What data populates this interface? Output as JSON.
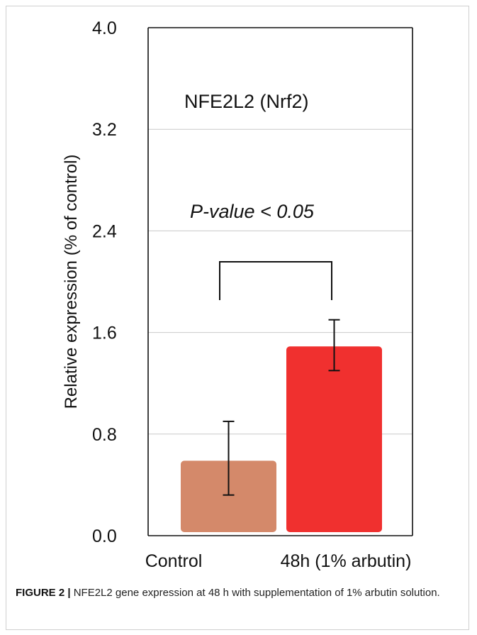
{
  "chart_data": {
    "type": "bar",
    "categories": [
      "Control",
      "48h (1% arbutin)"
    ],
    "values": [
      0.59,
      1.49
    ],
    "errors": [
      [
        0.32,
        0.9
      ],
      [
        1.3,
        1.7
      ]
    ],
    "title": "NFE2L2 (Nrf2)",
    "annotation": "P-value < 0.05",
    "ylabel": "Relative expression (% of control)",
    "xlabel": "",
    "ylim": [
      0.0,
      4.0
    ],
    "yticks": [
      "0.0",
      "0.8",
      "1.6",
      "2.4",
      "3.2",
      "4.0"
    ],
    "grid": true,
    "bar_colors": [
      "#d4896a",
      "#f0302f"
    ]
  },
  "caption": {
    "label": "FIGURE 2 |",
    "text": " NFE2L2 gene expression at 48 h with supplementation of 1% arbutin solution."
  }
}
